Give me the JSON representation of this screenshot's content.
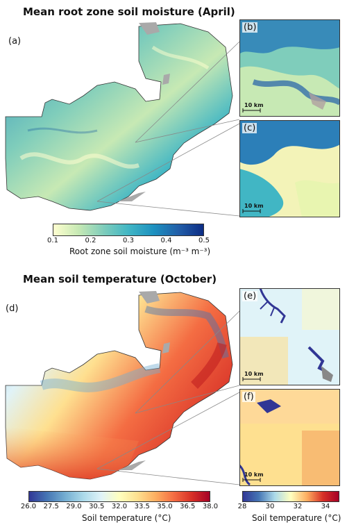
{
  "top": {
    "title": "Mean root zone soil moisture (April)",
    "panels": {
      "a": "(a)",
      "b": "(b)",
      "c": "(c)"
    },
    "scalebar_b": "10 km",
    "scalebar_c": "10 km",
    "colorbar": {
      "label": "Root zone soil moisture (m⁻³ m⁻³)",
      "ticks": [
        "0.1",
        "0.2",
        "0.3",
        "0.4",
        "0.5"
      ],
      "range": [
        0.1,
        0.5
      ],
      "colors": [
        "#ffffd0",
        "#c7e9b4",
        "#7fcdbb",
        "#41b6c4",
        "#1d91c0",
        "#225ea8",
        "#0c2c84"
      ]
    }
  },
  "bottom": {
    "title": "Mean soil temperature (October)",
    "panels": {
      "d": "(d)",
      "e": "(e)",
      "f": "(f)"
    },
    "scalebar_e": "10 km",
    "scalebar_f": "10 km",
    "colorbar_main": {
      "label": "Soil temperature (°C)",
      "ticks": [
        "26.0",
        "27.5",
        "29.0",
        "30.5",
        "32.0",
        "33.5",
        "35.0",
        "36.5",
        "38.0"
      ],
      "range": [
        26.0,
        38.0
      ],
      "colors": [
        "#313695",
        "#4575b4",
        "#74add1",
        "#abd9e9",
        "#e0f3f8",
        "#ffffbf",
        "#fee090",
        "#fdae61",
        "#f46d43",
        "#d73027",
        "#a50026"
      ]
    },
    "colorbar_inset": {
      "label": "Soil temperature (°C)",
      "ticks": [
        "28",
        "30",
        "32",
        "34"
      ],
      "range": [
        28,
        35
      ],
      "colors": [
        "#313695",
        "#4575b4",
        "#abd9e9",
        "#ffffbf",
        "#fdae61",
        "#d73027",
        "#a50026"
      ]
    }
  }
}
